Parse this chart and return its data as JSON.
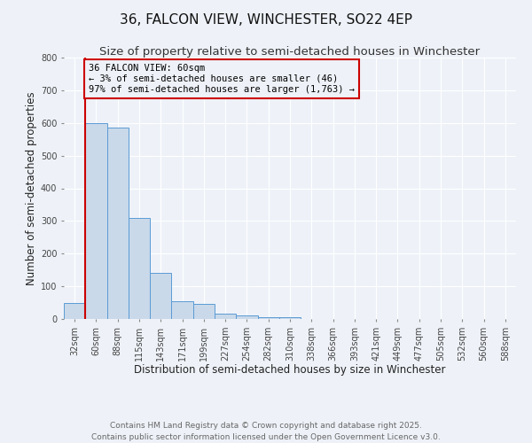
{
  "title": "36, FALCON VIEW, WINCHESTER, SO22 4EP",
  "subtitle": "Size of property relative to semi-detached houses in Winchester",
  "xlabel": "Distribution of semi-detached houses by size in Winchester",
  "ylabel": "Number of semi-detached properties",
  "bin_labels": [
    "32sqm",
    "60sqm",
    "88sqm",
    "115sqm",
    "143sqm",
    "171sqm",
    "199sqm",
    "227sqm",
    "254sqm",
    "282sqm",
    "310sqm",
    "338sqm",
    "366sqm",
    "393sqm",
    "421sqm",
    "449sqm",
    "477sqm",
    "505sqm",
    "532sqm",
    "560sqm",
    "588sqm"
  ],
  "bar_values": [
    50,
    600,
    585,
    310,
    140,
    55,
    45,
    15,
    10,
    5,
    5,
    0,
    0,
    0,
    0,
    0,
    0,
    0,
    0,
    0,
    0
  ],
  "bar_color": "#c9d9ea",
  "bar_edge_color": "#5b9bd5",
  "highlight_bin": 1,
  "highlight_line_color": "#cc0000",
  "annotation_title": "36 FALCON VIEW: 60sqm",
  "annotation_line1": "← 3% of semi-detached houses are smaller (46)",
  "annotation_line2": "97% of semi-detached houses are larger (1,763) →",
  "annotation_box_color": "#cc0000",
  "ylim": [
    0,
    800
  ],
  "yticks": [
    0,
    100,
    200,
    300,
    400,
    500,
    600,
    700,
    800
  ],
  "footer1": "Contains HM Land Registry data © Crown copyright and database right 2025.",
  "footer2": "Contains public sector information licensed under the Open Government Licence v3.0.",
  "background_color": "#eef2f8",
  "grid_color": "#ffffff",
  "title_fontsize": 11,
  "subtitle_fontsize": 9.5,
  "axis_label_fontsize": 8.5,
  "tick_fontsize": 7,
  "annotation_fontsize": 7.5,
  "footer_fontsize": 6.5
}
